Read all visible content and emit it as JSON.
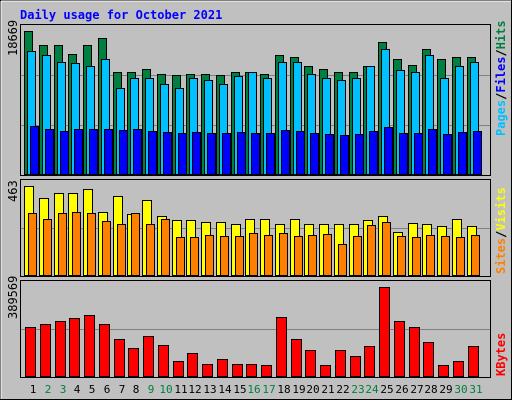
{
  "title": "Daily usage for October 2021",
  "colors": {
    "background": "#c0c0c0",
    "title": "#0000ff",
    "hits": "#008040",
    "files": "#00c0ff",
    "pages": "#0000ff",
    "visits": "#ffff00",
    "sites": "#ff8000",
    "kbytes": "#ff0000",
    "weekend_label": "#008040",
    "weekday_label": "#000000"
  },
  "legend": {
    "pages": "Pages",
    "files": "Files",
    "hits": "Hits",
    "sites": "Sites",
    "visits": "Visits",
    "kbytes": "KBytes",
    "sep": "/"
  },
  "chart_data": {
    "type": "bar",
    "categories": [
      "1",
      "2",
      "3",
      "4",
      "5",
      "6",
      "7",
      "8",
      "9",
      "10",
      "11",
      "12",
      "13",
      "14",
      "15",
      "16",
      "17",
      "18",
      "19",
      "20",
      "21",
      "22",
      "23",
      "24",
      "25",
      "26",
      "27",
      "28",
      "29",
      "30",
      "31"
    ],
    "weekend_days": [
      2,
      3,
      9,
      10,
      16,
      17,
      23,
      24,
      30,
      31
    ],
    "panels": [
      {
        "name": "hits-files-pages",
        "max_label": "18669",
        "ylim": [
          0,
          18669
        ],
        "series": [
          {
            "name": "Hits",
            "values": [
              18669,
              16800,
              16800,
              15700,
              16800,
              17800,
              13400,
              13400,
              13800,
              13100,
              12900,
              13100,
              13100,
              12900,
              13400,
              13400,
              13100,
              15500,
              15300,
              14100,
              13800,
              13400,
              13400,
              14100,
              17300,
              15100,
              14300,
              16300,
              15100,
              15300,
              15300
            ]
          },
          {
            "name": "Files",
            "values": [
              16100,
              15500,
              14700,
              14500,
              14100,
              15000,
              11300,
              12600,
              12600,
              11800,
              11300,
              12600,
              12300,
              11800,
              12800,
              13400,
              12600,
              14700,
              14700,
              13100,
              12600,
              12300,
              12600,
              14100,
              16300,
              13600,
              13400,
              15500,
              12600,
              14100,
              14700
            ]
          },
          {
            "name": "Pages",
            "values": [
              6400,
              6000,
              5700,
              6000,
              6000,
              6000,
              5800,
              6000,
              5700,
              5600,
              5400,
              5600,
              5500,
              5400,
              5600,
              5500,
              5400,
              5800,
              5700,
              5500,
              5300,
              5200,
              5300,
              5700,
              6200,
              5500,
              5500,
              6000,
              5300,
              5600,
              5700
            ]
          }
        ]
      },
      {
        "name": "visits-sites",
        "max_label": "463",
        "ylim": [
          0,
          463
        ],
        "series": [
          {
            "name": "Visits",
            "values": [
              463,
              400,
              425,
              425,
              450,
              330,
              410,
              320,
              390,
              310,
              290,
              290,
              280,
              280,
              270,
              295,
              295,
              265,
              295,
              265,
              270,
              265,
              270,
              290,
              310,
              225,
              275,
              270,
              255,
              295,
              255
            ]
          },
          {
            "name": "Sites",
            "values": [
              325,
              295,
              325,
              330,
              325,
              285,
              270,
              325,
              265,
              295,
              200,
              200,
              210,
              205,
              205,
              220,
              210,
              220,
              205,
              210,
              215,
              165,
              205,
              260,
              280,
              205,
              200,
              210,
              205,
              200,
              210
            ]
          }
        ]
      },
      {
        "name": "kbytes",
        "max_label": "389569",
        "ylim": [
          0,
          389569
        ],
        "series": [
          {
            "name": "KBytes",
            "values": [
              217000,
              229000,
              242000,
              254000,
              267000,
              229000,
              166000,
              127000,
              178000,
              140000,
              70000,
              102000,
              57000,
              77000,
              58000,
              58000,
              52000,
              261000,
              166000,
              115000,
              51000,
              115000,
              89000,
              134000,
              389569,
              242000,
              217000,
              153000,
              51000,
              70000,
              134000
            ]
          }
        ]
      }
    ]
  }
}
